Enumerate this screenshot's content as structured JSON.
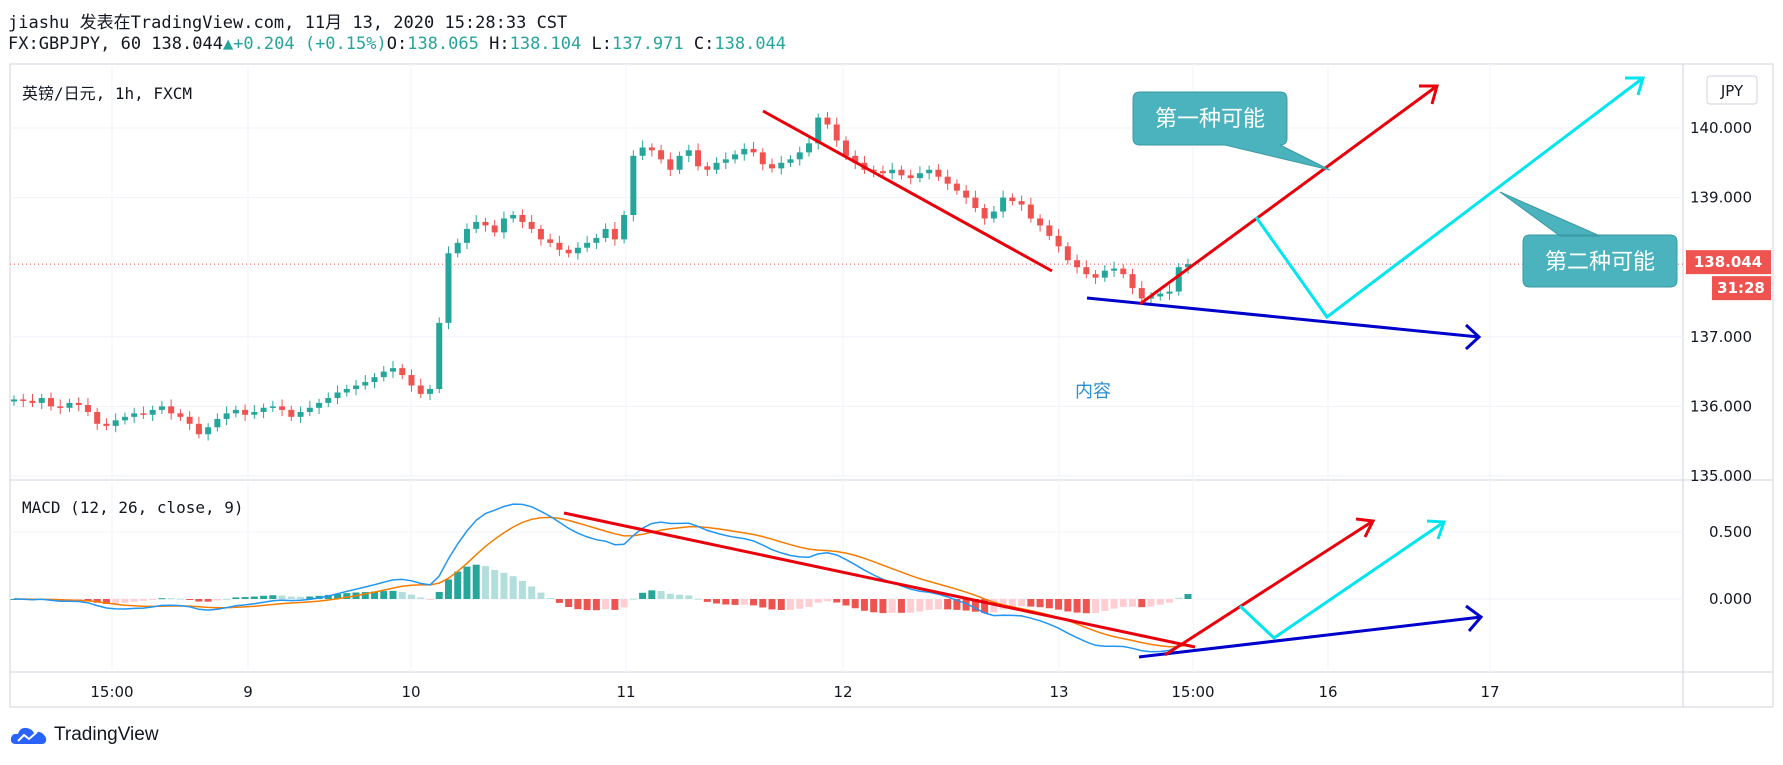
{
  "header": {
    "line1": "jiashu 发表在TradingView.com, 11月 13, 2020 15:28:33 CST",
    "symbol": "FX:GBPJPY, 60 138.044",
    "change": "+0.204 (+0.15%)",
    "open_label": "O:",
    "open": "138.065",
    "high_label": "H:",
    "high": "138.104",
    "low_label": "L:",
    "low": "137.971",
    "close_label": "C:",
    "close": "138.044"
  },
  "price_pane": {
    "title": "英镑/日元, 1h, FXCM",
    "currency_button": "JPY",
    "last_price": "138.044",
    "countdown": "31:28",
    "annotation_center": "内容",
    "callout_first": "第一种可能",
    "callout_second": "第二种可能"
  },
  "macd_pane": {
    "title": "MACD (12, 26, close, 9)"
  },
  "brand": {
    "name": "TradingView"
  },
  "colors": {
    "up": "#26a69a",
    "down": "#ef5350",
    "red_line": "#e8000b",
    "cyan_line": "#00e5ee",
    "blue_line": "#0000cd",
    "callout": "#4bb3bd",
    "macd_line": "#2196f3",
    "signal_line": "#f57c00",
    "hist_up_strong": "#26a69a",
    "hist_up_weak": "#b2dfdb",
    "hist_down_strong": "#ef5350",
    "hist_down_weak": "#ffcdd2"
  },
  "chart_data": [
    {
      "type": "candlestick",
      "title": "英镑/日元, 1h, FXCM",
      "x_ticks": [
        "15:00",
        "9",
        "10",
        "11",
        "12",
        "13",
        "15:00",
        "16",
        "17"
      ],
      "y_ticks": [
        "135.000",
        "136.000",
        "137.000",
        "138.000",
        "139.000",
        "140.000"
      ],
      "ylim": [
        134.9,
        140.7
      ],
      "last_price": 138.044,
      "series_close": [
        136.1,
        136.08,
        136.05,
        136.12,
        136.0,
        135.98,
        136.05,
        136.02,
        135.92,
        135.75,
        135.72,
        135.8,
        135.85,
        135.9,
        135.88,
        135.95,
        136.0,
        135.9,
        135.85,
        135.75,
        135.6,
        135.7,
        135.82,
        135.9,
        135.95,
        135.88,
        135.92,
        135.98,
        136.0,
        135.95,
        135.85,
        135.92,
        135.98,
        136.05,
        136.12,
        136.2,
        136.25,
        136.3,
        136.35,
        136.42,
        136.5,
        136.55,
        136.45,
        136.3,
        136.18,
        136.25,
        137.2,
        138.2,
        138.35,
        138.55,
        138.65,
        138.6,
        138.5,
        138.7,
        138.75,
        138.65,
        138.55,
        138.4,
        138.35,
        138.25,
        138.2,
        138.28,
        138.35,
        138.42,
        138.55,
        138.4,
        138.75,
        139.6,
        139.72,
        139.68,
        139.55,
        139.4,
        139.6,
        139.68,
        139.45,
        139.4,
        139.5,
        139.55,
        139.62,
        139.7,
        139.65,
        139.48,
        139.42,
        139.5,
        139.55,
        139.65,
        139.78,
        140.15,
        140.05,
        139.82,
        139.6,
        139.5,
        139.4,
        139.38,
        139.35,
        139.4,
        139.32,
        139.28,
        139.35,
        139.4,
        139.3,
        139.2,
        139.1,
        139.0,
        138.85,
        138.7,
        138.8,
        139.0,
        138.95,
        138.9,
        138.7,
        138.6,
        138.45,
        138.3,
        138.1,
        138.0,
        137.9,
        137.85,
        137.95,
        137.98,
        137.9,
        137.7,
        137.55,
        137.58,
        137.62,
        137.65,
        138.0,
        138.044
      ]
    },
    {
      "type": "line",
      "title": "MACD (12, 26, close, 9)",
      "y_ticks": [
        "0.500",
        "0.000"
      ],
      "ylim": [
        -0.55,
        0.72
      ]
    }
  ]
}
